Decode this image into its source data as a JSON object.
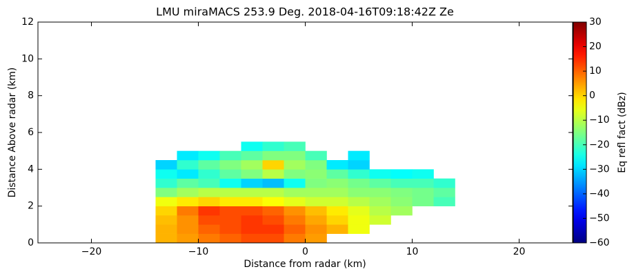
{
  "chart_data": {
    "type": "heatmap",
    "title": "LMU miraMACS 253.9 Deg. 2018-04-16T09:18:42Z  Ze",
    "x_label": "Distance from radar (km)",
    "y_label": "Distance Above radar  (km)",
    "colorbar_label": "Eq refl fact (dBz)",
    "colormap": "jet",
    "xlim": [
      -25,
      25
    ],
    "ylim": [
      0,
      12
    ],
    "clim": [
      -60,
      30
    ],
    "xticks": [
      {
        "value": -20,
        "label": "−20"
      },
      {
        "value": -10,
        "label": "−10"
      },
      0,
      10,
      20
    ],
    "yticks": [
      0,
      2,
      4,
      6,
      8,
      10,
      12
    ],
    "cticks": [
      {
        "value": -60,
        "label": "−60"
      },
      {
        "value": -50,
        "label": "−50"
      },
      {
        "value": -40,
        "label": "−40"
      },
      {
        "value": -30,
        "label": "−30"
      },
      {
        "value": -20,
        "label": "−20"
      },
      {
        "value": -10,
        "label": "−10"
      },
      0,
      10,
      20,
      30
    ],
    "x_edges": [
      -14,
      -12,
      -10,
      -8,
      -6,
      -4,
      -2,
      0,
      2,
      4,
      6,
      8,
      10,
      12,
      14
    ],
    "y_edges": [
      0,
      0.5,
      1,
      1.5,
      2,
      2.5,
      3,
      3.5,
      4,
      4.5,
      5,
      5.5
    ],
    "z": [
      [
        3,
        5,
        8,
        10,
        12,
        12,
        8,
        5,
        null,
        null,
        null,
        null,
        null,
        null
      ],
      [
        3,
        6,
        10,
        12,
        14,
        14,
        10,
        6,
        3,
        -5,
        null,
        null,
        null,
        null
      ],
      [
        2,
        6,
        12,
        12,
        14,
        12,
        8,
        4,
        0,
        -5,
        -8,
        null,
        null,
        null
      ],
      [
        0,
        8,
        14,
        12,
        12,
        10,
        6,
        2,
        -2,
        -6,
        -10,
        -12,
        null,
        null
      ],
      [
        -5,
        -2,
        0,
        -2,
        -2,
        -4,
        -6,
        -8,
        -8,
        -10,
        -12,
        -14,
        -16,
        -20
      ],
      [
        -15,
        -12,
        -10,
        -10,
        -10,
        -10,
        -12,
        -12,
        -12,
        -14,
        -14,
        -15,
        -16,
        -18
      ],
      [
        -22,
        -18,
        -20,
        -25,
        -30,
        -32,
        -25,
        -15,
        -14,
        -16,
        -18,
        -20,
        -20,
        -22
      ],
      [
        -25,
        -28,
        -22,
        -18,
        -15,
        -10,
        -15,
        -14,
        -18,
        -22,
        -25,
        -26,
        -25,
        null
      ],
      [
        -30,
        -22,
        -18,
        -15,
        -12,
        0,
        -12,
        -15,
        -28,
        -30,
        null,
        null,
        null,
        null
      ],
      [
        null,
        -28,
        -25,
        -20,
        -18,
        -15,
        -15,
        -20,
        null,
        -28,
        null,
        null,
        null,
        null
      ],
      [
        null,
        null,
        null,
        null,
        -25,
        -22,
        -20,
        null,
        null,
        null,
        null,
        null,
        null,
        null
      ]
    ]
  }
}
